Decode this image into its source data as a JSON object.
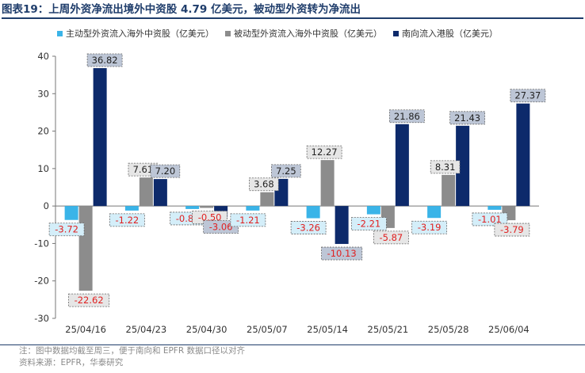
{
  "title": "图表19：上周外资净流出境外中资股 4.79 亿美元，被动型外资转为净流出",
  "colors": {
    "active": "#3ab4e8",
    "passive": "#8c8c8c",
    "southbound": "#0d2a6b",
    "negative_label": "#e02020",
    "positive_label": "#222222"
  },
  "legend": [
    {
      "label": "主动型外资流入海外中资股（亿美元）",
      "color": "#3ab4e8"
    },
    {
      "label": "被动型外资流入海外中资股（亿美元）",
      "color": "#8c8c8c"
    },
    {
      "label": "南向流入港股（亿美元）",
      "color": "#0d2a6b"
    }
  ],
  "chart_data": {
    "type": "bar",
    "categories": [
      "25/04/16",
      "25/04/23",
      "25/04/30",
      "25/05/07",
      "25/05/14",
      "25/05/21",
      "25/05/28",
      "25/06/04"
    ],
    "series": [
      {
        "name": "主动型外资流入海外中资股（亿美元）",
        "values": [
          -3.72,
          -1.22,
          -0.8,
          -1.21,
          -3.26,
          -2.21,
          -3.19,
          -1.01
        ]
      },
      {
        "name": "被动型外资流入海外中资股（亿美元）",
        "values": [
          -22.62,
          7.61,
          -0.5,
          3.68,
          12.27,
          -5.87,
          8.31,
          -3.79
        ]
      },
      {
        "name": "南向流入港股（亿美元）",
        "values": [
          36.82,
          7.2,
          -3.06,
          7.25,
          -10.13,
          21.86,
          21.43,
          27.37
        ]
      }
    ],
    "data_labels": [
      [
        "-3.72",
        "-22.62",
        "36.82"
      ],
      [
        "-1.22",
        "7.61",
        "7.20"
      ],
      [
        "-0.80",
        "-0.50",
        "-3.06"
      ],
      [
        "-1.21",
        "3.68",
        "7.25"
      ],
      [
        "-3.26",
        "12.27",
        "-10.13"
      ],
      [
        "-2.21",
        "-5.87",
        "21.86"
      ],
      [
        "-3.19",
        "8.31",
        "21.43"
      ],
      [
        "-1.01",
        "-3.79",
        "27.37"
      ]
    ],
    "ylim": [
      -30,
      40
    ],
    "yticks": [
      -30,
      -20,
      -10,
      0,
      10,
      20,
      30,
      40
    ],
    "xlabel": "",
    "ylabel": ""
  },
  "footer": {
    "note": "注：图中数据均截至周三，便于南向和 EPFR 数据口径以对齐",
    "source": "资料来源：EPFR，华泰研究"
  }
}
